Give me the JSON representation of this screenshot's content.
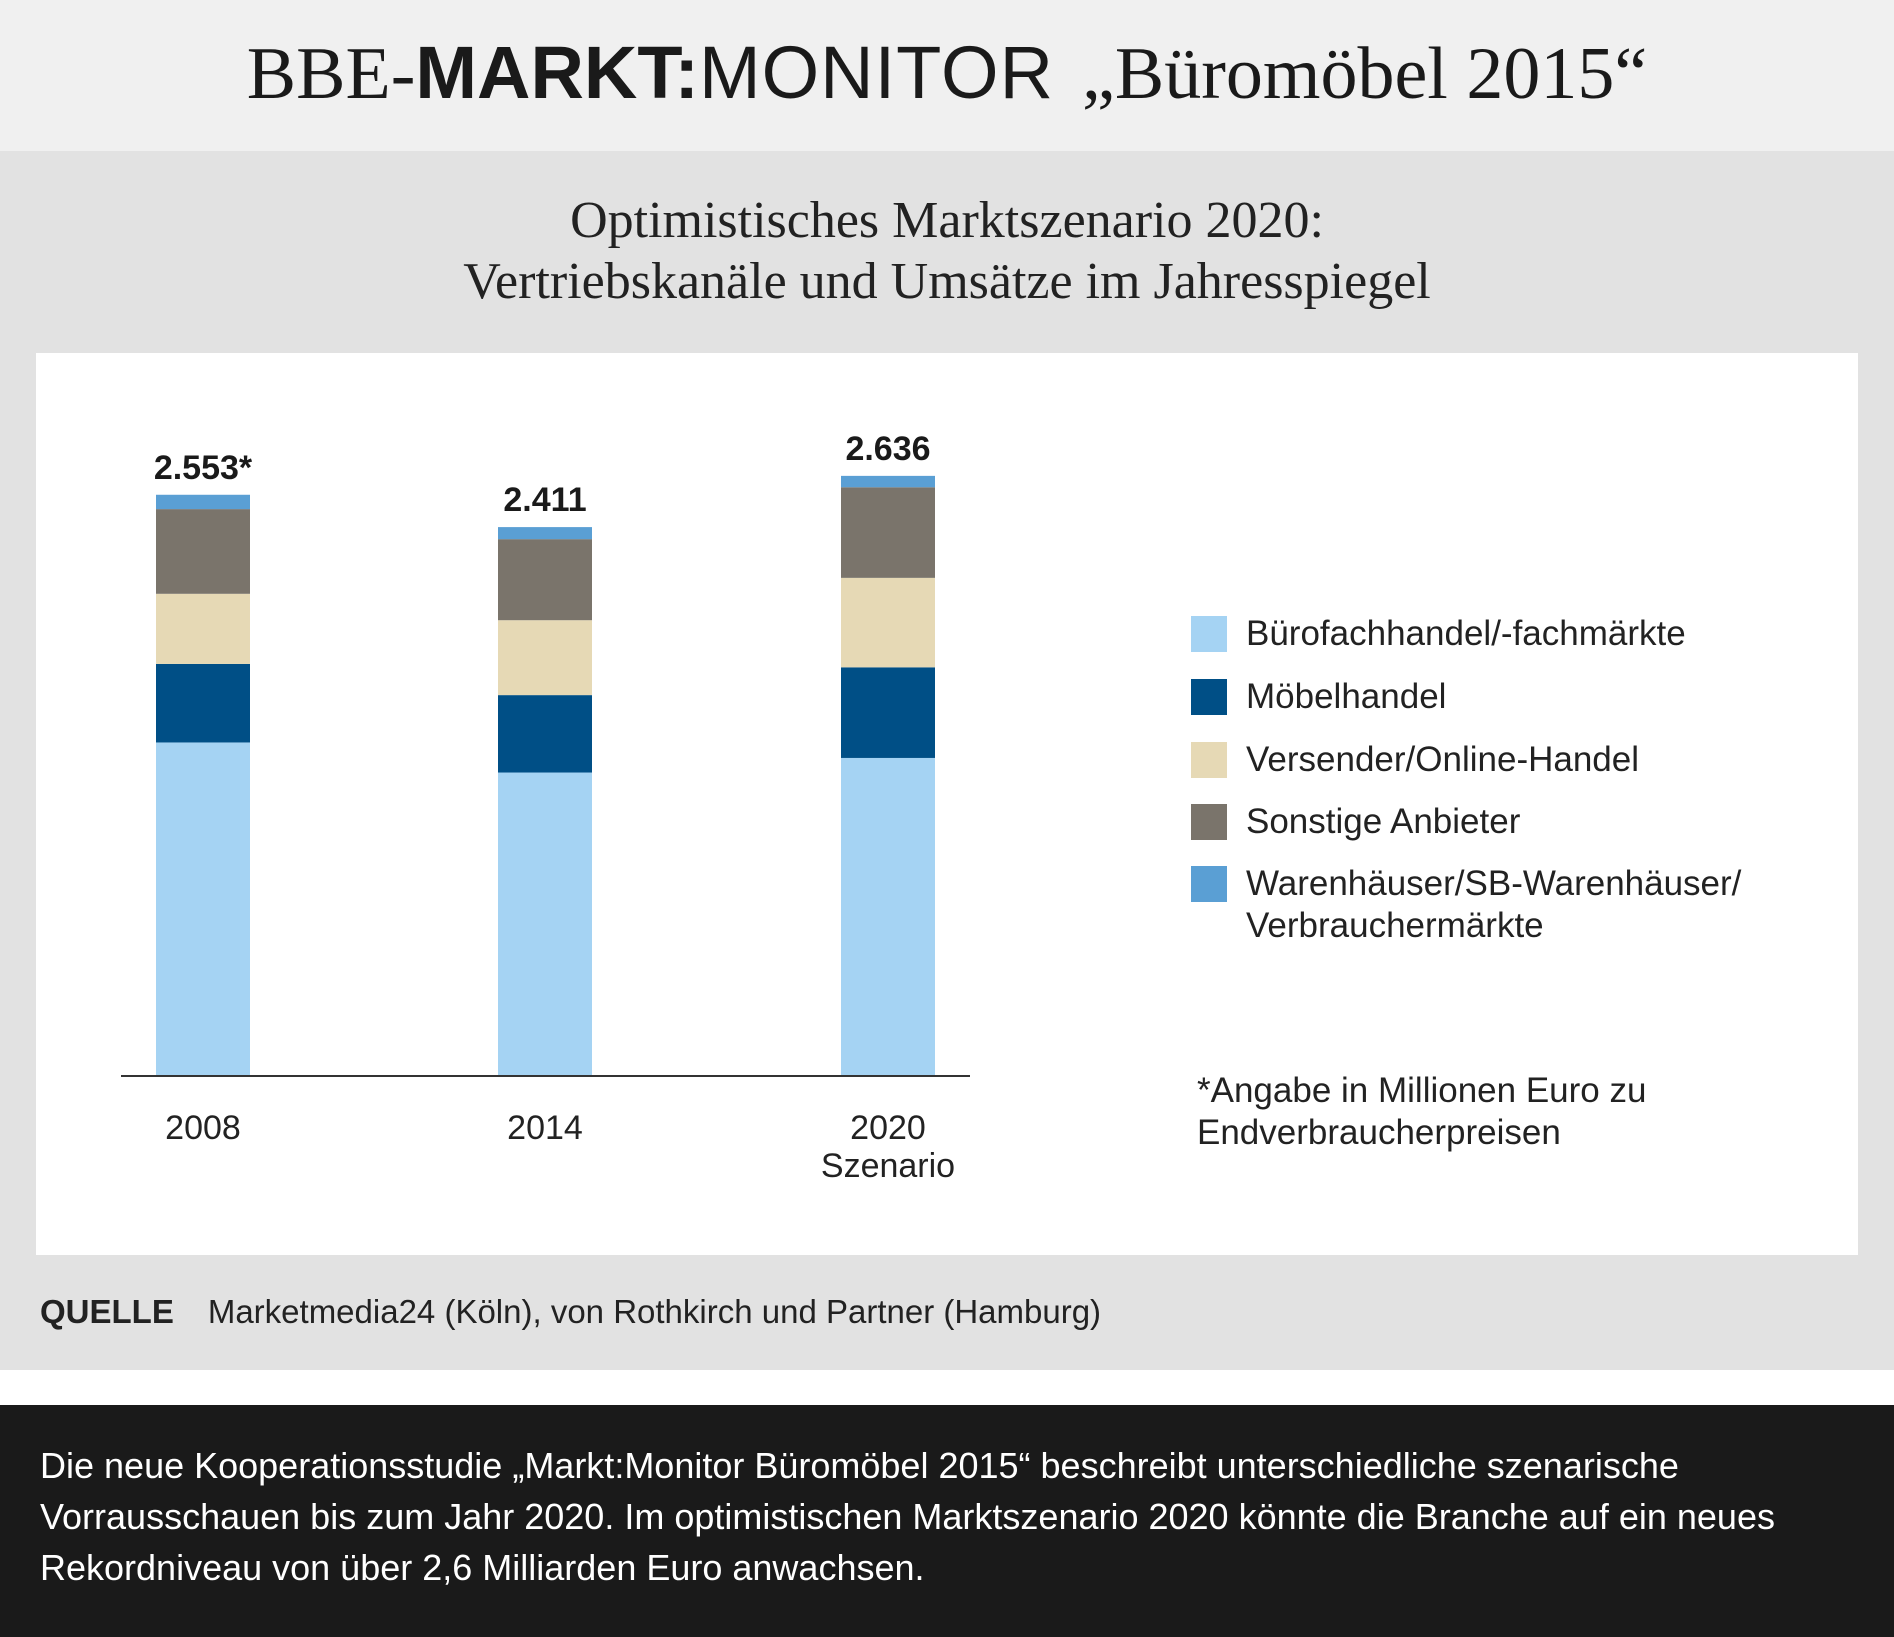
{
  "header": {
    "part1": "BBE-",
    "part2": "MARKT:",
    "part3": "MONITOR",
    "part4": "„Büromöbel 2015“"
  },
  "chart_data": {
    "type": "stacked-bar",
    "title": "Optimistisches Marktszenario 2020:",
    "subtitle": "Vertriebskanäle und Umsätze im Jahresspiegel",
    "categories": [
      "2008",
      "2014",
      "2020 Szenario"
    ],
    "series": [
      {
        "name": "Bürofachhandel/-fachmärkte",
        "color": "#a5d3f3",
        "values": [
          1465,
          1333,
          1397
        ]
      },
      {
        "name": "Möbelhandel",
        "color": "#004f86",
        "values": [
          345,
          340,
          398
        ]
      },
      {
        "name": "Versender/Online-Handel",
        "color": "#e6d9b5",
        "values": [
          308,
          329,
          393
        ]
      },
      {
        "name": "Sonstige Anbieter",
        "color": "#7a746b",
        "values": [
          372,
          356,
          398
        ]
      },
      {
        "name": "Warenhäuser/SB-Warenhäuser/ Verbrauchermärkte",
        "color": "#5a9fd4",
        "values": [
          63,
          53,
          50
        ]
      }
    ],
    "totals": {
      "values": [
        2553,
        2411,
        2636
      ],
      "value_labels": [
        "2.553*",
        "2.411",
        "2.636"
      ]
    },
    "ylim": [
      0,
      3000
    ],
    "legend": "right",
    "note": "*Angabe in Millionen Euro zu Endverbraucherpreisen"
  },
  "source": {
    "label": "QUELLE",
    "text": "Marketmedia24 (Köln), von Rothkirch und Partner (Hamburg)"
  },
  "description": "Die neue Kooperationsstudie „Markt:Monitor Büromöbel 2015“ beschreibt unterschiedliche szenarische Vorrausschauen bis zum Jahr 2020. Im optimistischen Marktszenario 2020 könnte die Branche auf ein neues Rekordniveau von über 2,6 Milliarden Euro anwachsen."
}
